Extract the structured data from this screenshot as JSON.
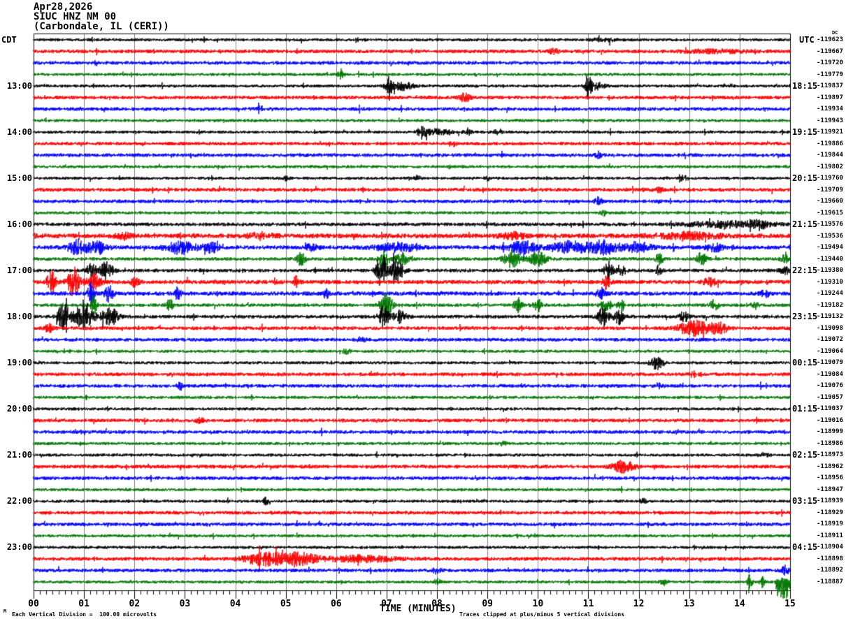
{
  "header": {
    "date": "Apr28,2026",
    "station": "SIUC HNZ NM 00",
    "location": "(Carbondale, IL (CERI))",
    "tz_left": "CDT",
    "tz_right": "UTC",
    "dc_column_label": "DC"
  },
  "footer": {
    "scale_note": "Each Vertical Division =  100.00 microvolts",
    "clip_note": "Traces clipped at plus/minus 5 vertical divisions",
    "corner_glyph": "M"
  },
  "chart_data": {
    "type": "line",
    "title": "SIUC HNZ NM 00 helicorder, Apr28,2026, Carbondale IL (CERI)",
    "xlabel": "TIME (MINUTES)",
    "x_ticks": [
      "00",
      "01",
      "02",
      "03",
      "04",
      "05",
      "06",
      "07",
      "08",
      "09",
      "10",
      "11",
      "12",
      "13",
      "14",
      "15"
    ],
    "xlim": [
      0,
      15
    ],
    "row_duration_minutes": 15,
    "left_axis_timezone": "CDT",
    "right_axis_timezone": "UTC",
    "left_hour_labels": [
      "13:00",
      "14:00",
      "15:00",
      "16:00",
      "17:00",
      "18:00",
      "19:00",
      "20:00",
      "21:00",
      "22:00",
      "23:00"
    ],
    "right_hour_labels": [
      "18:15",
      "19:15",
      "20:15",
      "21:15",
      "22:15",
      "23:15",
      "00:15",
      "01:15",
      "02:15",
      "03:15",
      "04:15"
    ],
    "grid": true,
    "grid_color": "#808080",
    "trace_color_cycle": [
      "#000000",
      "#ff0000",
      "#0000ff",
      "#007700"
    ],
    "events_format": "[minute, relative_intensity_px, width_minutes, direction(0=both,-1=down)]",
    "rows": [
      {
        "left": "",
        "right": "",
        "dc": "-119623",
        "c": 0,
        "noise": 2.2,
        "events": [
          [
            11.3,
            2,
            0.3,
            0
          ]
        ]
      },
      {
        "left": "",
        "right": "",
        "dc": "-119667",
        "c": 1,
        "noise": 2.6,
        "events": [
          [
            10.3,
            3,
            0.15,
            0
          ],
          [
            13.5,
            2,
            0.8,
            0
          ]
        ]
      },
      {
        "left": "",
        "right": "",
        "dc": "-119720",
        "c": 2,
        "noise": 2.6,
        "events": []
      },
      {
        "left": "",
        "right": "",
        "dc": "-119779",
        "c": 3,
        "noise": 2.2,
        "events": [
          [
            6.1,
            7,
            0.07,
            0
          ]
        ]
      },
      {
        "left": "13:00",
        "right": "18:15",
        "dc": "-119837",
        "c": 0,
        "noise": 2.2,
        "events": [
          [
            7.05,
            20,
            0.06,
            0
          ],
          [
            7.3,
            6,
            0.25,
            0
          ],
          [
            11.0,
            16,
            0.07,
            0
          ],
          [
            11.15,
            5,
            0.2,
            0
          ]
        ]
      },
      {
        "left": "",
        "right": "",
        "dc": "-119897",
        "c": 1,
        "noise": 2.6,
        "events": [
          [
            8.55,
            6,
            0.12,
            0
          ]
        ]
      },
      {
        "left": "",
        "right": "",
        "dc": "-119934",
        "c": 2,
        "noise": 2.6,
        "events": [
          [
            4.5,
            3,
            0.1,
            0
          ]
        ]
      },
      {
        "left": "",
        "right": "",
        "dc": "-119943",
        "c": 3,
        "noise": 2.2,
        "events": []
      },
      {
        "left": "14:00",
        "right": "19:15",
        "dc": "-119921",
        "c": 0,
        "noise": 2.2,
        "events": [
          [
            7.7,
            9,
            0.1,
            0
          ],
          [
            8.0,
            4,
            0.3,
            0
          ],
          [
            8.6,
            5,
            0.08,
            0
          ],
          [
            9.2,
            3,
            0.1,
            0
          ]
        ]
      },
      {
        "left": "",
        "right": "",
        "dc": "-119886",
        "c": 1,
        "noise": 2.6,
        "events": [
          [
            8.3,
            3,
            0.1,
            0
          ]
        ]
      },
      {
        "left": "",
        "right": "",
        "dc": "-119844",
        "c": 2,
        "noise": 2.6,
        "events": [
          [
            11.2,
            4,
            0.08,
            0
          ]
        ]
      },
      {
        "left": "",
        "right": "",
        "dc": "-119802",
        "c": 3,
        "noise": 2.2,
        "events": []
      },
      {
        "left": "15:00",
        "right": "20:15",
        "dc": "-119760",
        "c": 0,
        "noise": 2.2,
        "events": [
          [
            5.0,
            3,
            0.08,
            0
          ],
          [
            7.6,
            3,
            0.08,
            0
          ],
          [
            9.0,
            3,
            0.08,
            0
          ],
          [
            12.9,
            4,
            0.1,
            0
          ]
        ]
      },
      {
        "left": "",
        "right": "",
        "dc": "-119709",
        "c": 1,
        "noise": 2.7,
        "events": [
          [
            12.4,
            3,
            0.1,
            0
          ]
        ]
      },
      {
        "left": "",
        "right": "",
        "dc": "-119660",
        "c": 2,
        "noise": 2.6,
        "events": [
          [
            11.2,
            5,
            0.08,
            0
          ]
        ]
      },
      {
        "left": "",
        "right": "",
        "dc": "-119615",
        "c": 3,
        "noise": 2.2,
        "events": [
          [
            11.3,
            4,
            0.08,
            0
          ]
        ]
      },
      {
        "left": "16:00",
        "right": "21:15",
        "dc": "-119576",
        "c": 0,
        "noise": 2.6,
        "events": [
          [
            13.8,
            4,
            1.0,
            0
          ],
          [
            14.4,
            5,
            0.15,
            0
          ]
        ]
      },
      {
        "left": "",
        "right": "",
        "dc": "-119536",
        "c": 1,
        "noise": 3.4,
        "events": [
          [
            1.8,
            4,
            0.2,
            0
          ],
          [
            4.5,
            4,
            0.3,
            0
          ],
          [
            9.5,
            4,
            0.3,
            0
          ],
          [
            13.0,
            4,
            0.8,
            0
          ]
        ]
      },
      {
        "left": "",
        "right": "",
        "dc": "-119494",
        "c": 2,
        "noise": 3.0,
        "events": [
          [
            0.9,
            10,
            0.25,
            0
          ],
          [
            1.3,
            8,
            0.2,
            0
          ],
          [
            2.9,
            9,
            0.35,
            0
          ],
          [
            3.5,
            7,
            0.2,
            0
          ],
          [
            5.5,
            5,
            0.15,
            0
          ],
          [
            7.2,
            6,
            0.5,
            0
          ],
          [
            9.7,
            9,
            0.3,
            0
          ],
          [
            10.6,
            8,
            0.4,
            0
          ],
          [
            11.3,
            9,
            0.4,
            0
          ],
          [
            12.0,
            7,
            0.3,
            0
          ],
          [
            13.5,
            5,
            0.2,
            0
          ]
        ]
      },
      {
        "left": "",
        "right": "",
        "dc": "-119440",
        "c": 3,
        "noise": 2.5,
        "events": [
          [
            5.3,
            9,
            0.1,
            0
          ],
          [
            6.95,
            13,
            0.12,
            0
          ],
          [
            7.3,
            8,
            0.15,
            0
          ],
          [
            9.5,
            12,
            0.2,
            0
          ],
          [
            10.0,
            9,
            0.2,
            0
          ],
          [
            12.4,
            7,
            0.1,
            0
          ],
          [
            13.25,
            9,
            0.12,
            0
          ],
          [
            14.9,
            5,
            0.1,
            0
          ]
        ]
      },
      {
        "left": "17:00",
        "right": "22:15",
        "dc": "-119380",
        "c": 0,
        "noise": 2.6,
        "events": [
          [
            1.15,
            14,
            0.1,
            0
          ],
          [
            1.45,
            12,
            0.15,
            0
          ],
          [
            6.9,
            24,
            0.12,
            0
          ],
          [
            7.2,
            16,
            0.15,
            0
          ],
          [
            11.4,
            13,
            0.1,
            0
          ],
          [
            11.65,
            9,
            0.1,
            0
          ],
          [
            12.4,
            7,
            0.08,
            0
          ],
          [
            14.9,
            5,
            0.1,
            0
          ]
        ]
      },
      {
        "left": "",
        "right": "",
        "dc": "-119310",
        "c": 1,
        "noise": 3.0,
        "events": [
          [
            0.35,
            16,
            0.1,
            0
          ],
          [
            0.8,
            20,
            0.15,
            0
          ],
          [
            1.2,
            12,
            0.15,
            0
          ],
          [
            2.0,
            6,
            0.1,
            0
          ],
          [
            5.2,
            7,
            0.08,
            0
          ],
          [
            11.35,
            9,
            0.1,
            0
          ],
          [
            13.4,
            5,
            0.15,
            0
          ]
        ]
      },
      {
        "left": "",
        "right": "",
        "dc": "-119244",
        "c": 2,
        "noise": 3.0,
        "events": [
          [
            1.15,
            18,
            0.08,
            0
          ],
          [
            1.5,
            11,
            0.1,
            0
          ],
          [
            2.85,
            8,
            0.08,
            0
          ],
          [
            5.8,
            7,
            0.06,
            0
          ],
          [
            11.25,
            7,
            0.1,
            0
          ],
          [
            14.5,
            5,
            0.1,
            0
          ]
        ]
      },
      {
        "left": "",
        "right": "",
        "dc": "-119182",
        "c": 3,
        "noise": 2.5,
        "events": [
          [
            1.2,
            13,
            0.08,
            0
          ],
          [
            2.7,
            8,
            0.08,
            0
          ],
          [
            7.0,
            17,
            0.15,
            0
          ],
          [
            9.6,
            10,
            0.1,
            0
          ],
          [
            10.0,
            8,
            0.12,
            0
          ],
          [
            11.35,
            12,
            0.1,
            0
          ],
          [
            11.65,
            8,
            0.1,
            0
          ],
          [
            13.5,
            7,
            0.1,
            0
          ],
          [
            14.3,
            5,
            0.08,
            0
          ]
        ]
      },
      {
        "left": "18:00",
        "right": "23:15",
        "dc": "-119132",
        "c": 0,
        "noise": 2.6,
        "events": [
          [
            0.6,
            18,
            0.15,
            0
          ],
          [
            1.0,
            22,
            0.2,
            0
          ],
          [
            1.5,
            14,
            0.2,
            0
          ],
          [
            6.95,
            18,
            0.1,
            0
          ],
          [
            7.25,
            10,
            0.15,
            0
          ],
          [
            11.3,
            13,
            0.12,
            0
          ],
          [
            11.6,
            10,
            0.12,
            0
          ],
          [
            12.9,
            7,
            0.1,
            0
          ]
        ]
      },
      {
        "left": "",
        "right": "",
        "dc": "-119098",
        "c": 1,
        "noise": 2.6,
        "events": [
          [
            0.3,
            6,
            0.1,
            0
          ],
          [
            13.1,
            10,
            0.4,
            0
          ],
          [
            13.6,
            7,
            0.2,
            0
          ]
        ]
      },
      {
        "left": "",
        "right": "",
        "dc": "-119072",
        "c": 2,
        "noise": 2.6,
        "events": [
          [
            6.5,
            3,
            0.1,
            0
          ]
        ]
      },
      {
        "left": "",
        "right": "",
        "dc": "-119064",
        "c": 3,
        "noise": 2.2,
        "events": [
          [
            6.2,
            3,
            0.1,
            0
          ]
        ]
      },
      {
        "left": "19:00",
        "right": "00:15",
        "dc": "-119079",
        "c": 0,
        "noise": 2.2,
        "events": [
          [
            12.35,
            10,
            0.15,
            0
          ]
        ]
      },
      {
        "left": "",
        "right": "",
        "dc": "-119084",
        "c": 1,
        "noise": 2.7,
        "events": [
          [
            13.1,
            3,
            0.1,
            0
          ]
        ]
      },
      {
        "left": "",
        "right": "",
        "dc": "-119076",
        "c": 2,
        "noise": 2.6,
        "events": [
          [
            2.9,
            7,
            0.06,
            0
          ],
          [
            12.4,
            3,
            0.1,
            0
          ]
        ]
      },
      {
        "left": "",
        "right": "",
        "dc": "-119057",
        "c": 3,
        "noise": 2.2,
        "events": []
      },
      {
        "left": "20:00",
        "right": "01:15",
        "dc": "-119037",
        "c": 0,
        "noise": 2.2,
        "events": []
      },
      {
        "left": "",
        "right": "",
        "dc": "-119016",
        "c": 1,
        "noise": 2.6,
        "events": [
          [
            3.3,
            3,
            0.1,
            0
          ]
        ]
      },
      {
        "left": "",
        "right": "",
        "dc": "-118999",
        "c": 2,
        "noise": 2.6,
        "events": []
      },
      {
        "left": "",
        "right": "",
        "dc": "-118986",
        "c": 3,
        "noise": 2.2,
        "events": [
          [
            9.3,
            3,
            0.1,
            0
          ]
        ]
      },
      {
        "left": "21:00",
        "right": "02:15",
        "dc": "-118973",
        "c": 0,
        "noise": 2.2,
        "events": [
          [
            14.5,
            3,
            0.1,
            0
          ]
        ]
      },
      {
        "left": "",
        "right": "",
        "dc": "-118962",
        "c": 1,
        "noise": 2.7,
        "events": [
          [
            11.7,
            8,
            0.25,
            0
          ]
        ]
      },
      {
        "left": "",
        "right": "",
        "dc": "-118956",
        "c": 2,
        "noise": 2.6,
        "events": []
      },
      {
        "left": "",
        "right": "",
        "dc": "-118947",
        "c": 3,
        "noise": 2.2,
        "events": []
      },
      {
        "left": "22:00",
        "right": "03:15",
        "dc": "-118939",
        "c": 0,
        "noise": 2.2,
        "events": [
          [
            4.6,
            5,
            0.06,
            0
          ],
          [
            12.1,
            3,
            0.08,
            0
          ]
        ]
      },
      {
        "left": "",
        "right": "",
        "dc": "-118929",
        "c": 1,
        "noise": 2.6,
        "events": []
      },
      {
        "left": "",
        "right": "",
        "dc": "-118919",
        "c": 2,
        "noise": 2.6,
        "events": []
      },
      {
        "left": "",
        "right": "",
        "dc": "-118911",
        "c": 3,
        "noise": 2.2,
        "events": []
      },
      {
        "left": "23:00",
        "right": "04:15",
        "dc": "-118904",
        "c": 0,
        "noise": 2.2,
        "events": []
      },
      {
        "left": "",
        "right": "",
        "dc": "-118898",
        "c": 1,
        "noise": 2.7,
        "events": [
          [
            4.6,
            9,
            0.5,
            0
          ],
          [
            5.3,
            8,
            0.4,
            0
          ],
          [
            6.5,
            4,
            0.8,
            0
          ]
        ]
      },
      {
        "left": "",
        "right": "",
        "dc": "-118892",
        "c": 2,
        "noise": 2.6,
        "events": [
          [
            8.0,
            4,
            0.1,
            0
          ],
          [
            14.9,
            7,
            0.08,
            0
          ]
        ]
      },
      {
        "left": "",
        "right": "",
        "dc": "-118887",
        "c": 3,
        "noise": 2.2,
        "deep": true,
        "events": [
          [
            8.0,
            4,
            0.08,
            0
          ],
          [
            12.5,
            4,
            0.08,
            0
          ],
          [
            14.2,
            9,
            0.06,
            0
          ],
          [
            14.45,
            7,
            0.06,
            0
          ],
          [
            14.75,
            20,
            0.05,
            -1
          ],
          [
            14.85,
            40,
            0.07,
            -1
          ],
          [
            14.95,
            25,
            0.05,
            -1
          ]
        ]
      }
    ]
  }
}
